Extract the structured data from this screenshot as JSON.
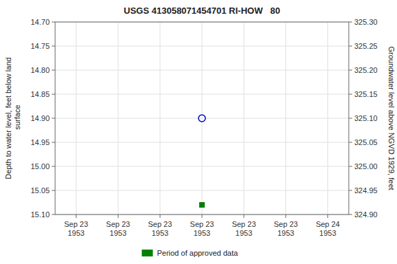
{
  "chart_data": {
    "type": "scatter",
    "title": "USGS 413058071454701 RI-HOW   80",
    "y_label": "Depth to water level, feet below land\n surface",
    "y2_label": "Groundwater level above NGVD 1929, feet",
    "categories": [
      "Sep 23\n1953",
      "Sep 23\n1953",
      "Sep 23\n1953",
      "Sep 23\n1953",
      "Sep 23\n1953",
      "Sep 23\n1953",
      "Sep 24\n1953"
    ],
    "series": [
      {
        "color": "#0000cc",
        "marker": "circle-open",
        "values": [
          null,
          null,
          null,
          14.9,
          null,
          null,
          null
        ]
      },
      {
        "name": "Period of approved data",
        "color": "#008000",
        "marker": "square",
        "values": [
          null,
          null,
          null,
          15.08,
          null,
          null,
          null
        ]
      }
    ],
    "ylim": [
      15.1,
      14.7
    ],
    "yticks": [
      {
        "value": 14.7,
        "label": "14.70"
      },
      {
        "value": 14.75,
        "label": "14.75"
      },
      {
        "value": 14.8,
        "label": "14.80"
      },
      {
        "value": 14.85,
        "label": "14.85"
      },
      {
        "value": 14.9,
        "label": "14.90"
      },
      {
        "value": 14.95,
        "label": "14.95"
      },
      {
        "value": 15.0,
        "label": "15.00"
      },
      {
        "value": 15.05,
        "label": "15.05"
      },
      {
        "value": 15.1,
        "label": "15.10"
      }
    ],
    "y2lim": [
      324.9,
      325.3
    ],
    "y2ticks": [
      {
        "value": 325.3,
        "label": "325.30"
      },
      {
        "value": 325.25,
        "label": "325.25"
      },
      {
        "value": 325.2,
        "label": "325.20"
      },
      {
        "value": 325.15,
        "label": "325.15"
      },
      {
        "value": 325.1,
        "label": "325.10"
      },
      {
        "value": 325.05,
        "label": "325.05"
      },
      {
        "value": 325.0,
        "label": "325.00"
      },
      {
        "value": 324.95,
        "label": "324.95"
      },
      {
        "value": 324.9,
        "label": "324.90"
      }
    ],
    "grid": true,
    "legend": "bottom"
  }
}
